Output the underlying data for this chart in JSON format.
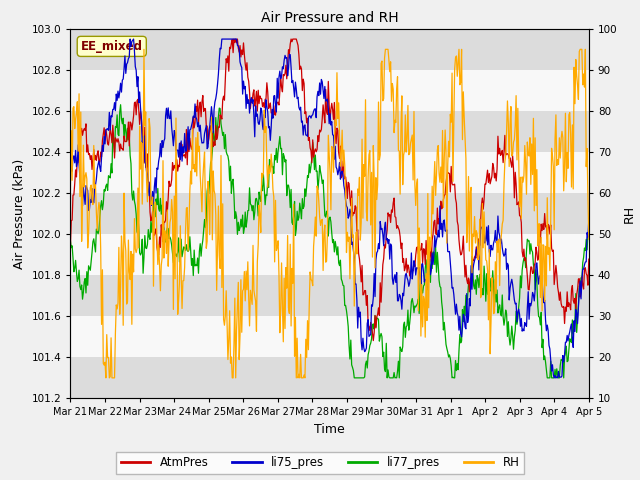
{
  "title": "Air Pressure and RH",
  "xlabel": "Time",
  "ylabel_left": "Air Pressure (kPa)",
  "ylabel_right": "RH",
  "annotation": "EE_mixed",
  "ylim_left": [
    101.2,
    103.0
  ],
  "ylim_right": [
    10,
    100
  ],
  "yticks_left": [
    101.2,
    101.4,
    101.6,
    101.8,
    102.0,
    102.2,
    102.4,
    102.6,
    102.8,
    103.0
  ],
  "yticks_right": [
    10,
    20,
    30,
    40,
    50,
    60,
    70,
    80,
    90,
    100
  ],
  "background_color": "#f0f0f0",
  "plot_bg_color": "#e8e8e8",
  "band_colors_light": "#f8f8f8",
  "band_colors_dark": "#dcdcdc",
  "line_colors": {
    "AtmPres": "#cc0000",
    "li75_pres": "#0000cc",
    "li77_pres": "#00aa00",
    "RH": "#ffaa00"
  },
  "line_width": 0.9,
  "xtick_labels": [
    "Mar 21",
    "Mar 22",
    "Mar 23",
    "Mar 24",
    "Mar 25",
    "Mar 26",
    "Mar 27",
    "Mar 28",
    "Mar 29",
    "Mar 30",
    "Mar 31",
    "Apr 1",
    "Apr 2",
    "Apr 3",
    "Apr 4",
    "Apr 5"
  ],
  "n_days": 15,
  "n_points": 600
}
